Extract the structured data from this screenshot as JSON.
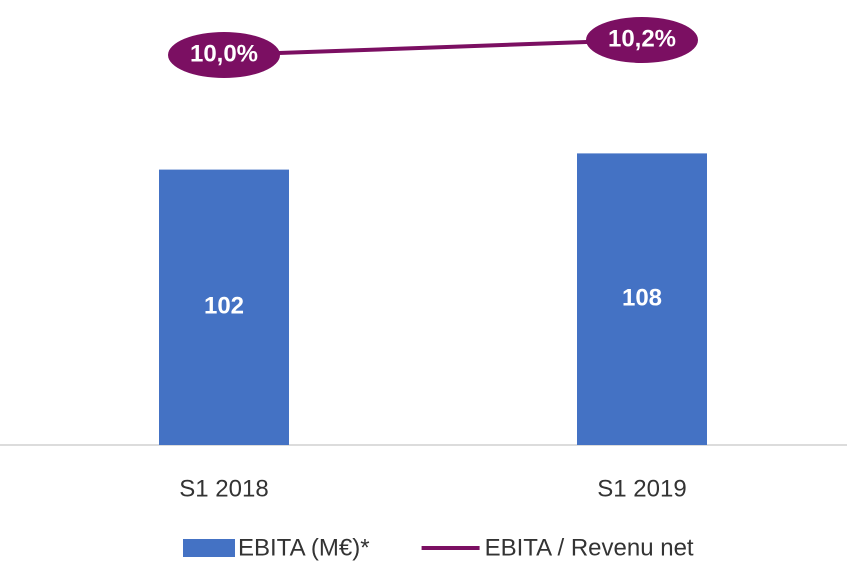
{
  "chart_data": {
    "type": "bar",
    "categories": [
      "S1 2018",
      "S1 2019"
    ],
    "series": [
      {
        "name": "EBITA (M€)*",
        "type": "bar",
        "color": "#4472c4",
        "values": [
          102,
          108
        ]
      },
      {
        "name": "EBITA / Revenu net",
        "type": "line",
        "axis": "y2",
        "color": "#7b0f62",
        "values": [
          10.0,
          10.2
        ],
        "value_labels": [
          "10,0%",
          "10,2%"
        ]
      }
    ],
    "ylim": [
      0,
      150
    ],
    "y2lim": [
      4.8,
      10.2
    ],
    "legend": "bottom"
  }
}
